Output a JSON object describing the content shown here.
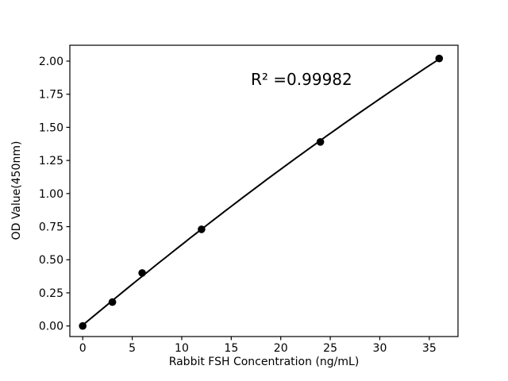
{
  "colors": {
    "background": "#ffffff",
    "foreground": "#000000"
  },
  "chart_data": {
    "type": "scatter",
    "title": "",
    "xlabel": "Rabbit FSH Concentration (ng/mL)",
    "ylabel": "OD Value(450nm)",
    "annotation": "R² =0.99982",
    "r_squared": 0.99982,
    "x": [
      0,
      3,
      6,
      12,
      24,
      36
    ],
    "y": [
      0.0,
      0.18,
      0.4,
      0.73,
      1.39,
      2.02
    ],
    "fit": "quadratic",
    "xlim": [
      -1.3,
      37.9
    ],
    "ylim": [
      -0.08,
      2.12
    ],
    "xticks": [
      0,
      5,
      10,
      15,
      20,
      25,
      30,
      35
    ],
    "xtick_labels": [
      "0",
      "5",
      "10",
      "15",
      "20",
      "25",
      "30",
      "35"
    ],
    "yticks": [
      0,
      0.25,
      0.5,
      0.75,
      1.0,
      1.25,
      1.5,
      1.75,
      2.0
    ],
    "ytick_labels": [
      "0.00",
      "0.25",
      "0.50",
      "0.75",
      "1.00",
      "1.25",
      "1.50",
      "1.75",
      "2.00"
    ],
    "grid": false,
    "legend": null,
    "line_color": "#000000",
    "marker_color": "#000000",
    "marker": "circle",
    "annotation_xy": [
      22.1,
      1.86
    ]
  }
}
